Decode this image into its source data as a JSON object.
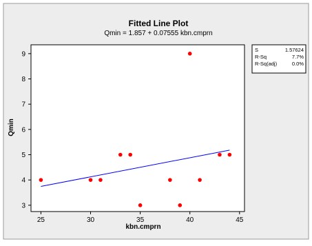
{
  "chart_data": {
    "type": "scatter",
    "title": "Fitted Line Plot",
    "subtitle": "Qmin =  1.857 + 0.07555 kbn.cmprn",
    "xlabel": "kbn.cmprn",
    "ylabel": "Qmin",
    "xlim": [
      24,
      45.5
    ],
    "ylim": [
      2.75,
      9.35
    ],
    "xticks": [
      25,
      30,
      35,
      40,
      45
    ],
    "yticks": [
      3,
      4,
      5,
      6,
      7,
      8,
      9
    ],
    "grid": false,
    "points": [
      {
        "x": 25,
        "y": 4
      },
      {
        "x": 30,
        "y": 4
      },
      {
        "x": 31,
        "y": 4
      },
      {
        "x": 33,
        "y": 5
      },
      {
        "x": 34,
        "y": 5
      },
      {
        "x": 35,
        "y": 3
      },
      {
        "x": 38,
        "y": 4
      },
      {
        "x": 39,
        "y": 3
      },
      {
        "x": 40,
        "y": 9
      },
      {
        "x": 41,
        "y": 4
      },
      {
        "x": 43,
        "y": 5
      },
      {
        "x": 44,
        "y": 5
      }
    ],
    "fit": {
      "intercept": 1.857,
      "slope": 0.07555,
      "x_from": 25,
      "x_to": 44
    },
    "stats": [
      {
        "label": "S",
        "value": "1.57624"
      },
      {
        "label": "R-Sq",
        "value": "7.7%"
      },
      {
        "label": "R-Sq(adj)",
        "value": "0.0%"
      }
    ],
    "colors": {
      "frame_bg": "#ededed",
      "plot_bg": "#ffffff",
      "points": "#ff0000",
      "fit_line": "#0000ff",
      "text": "#000000"
    }
  }
}
